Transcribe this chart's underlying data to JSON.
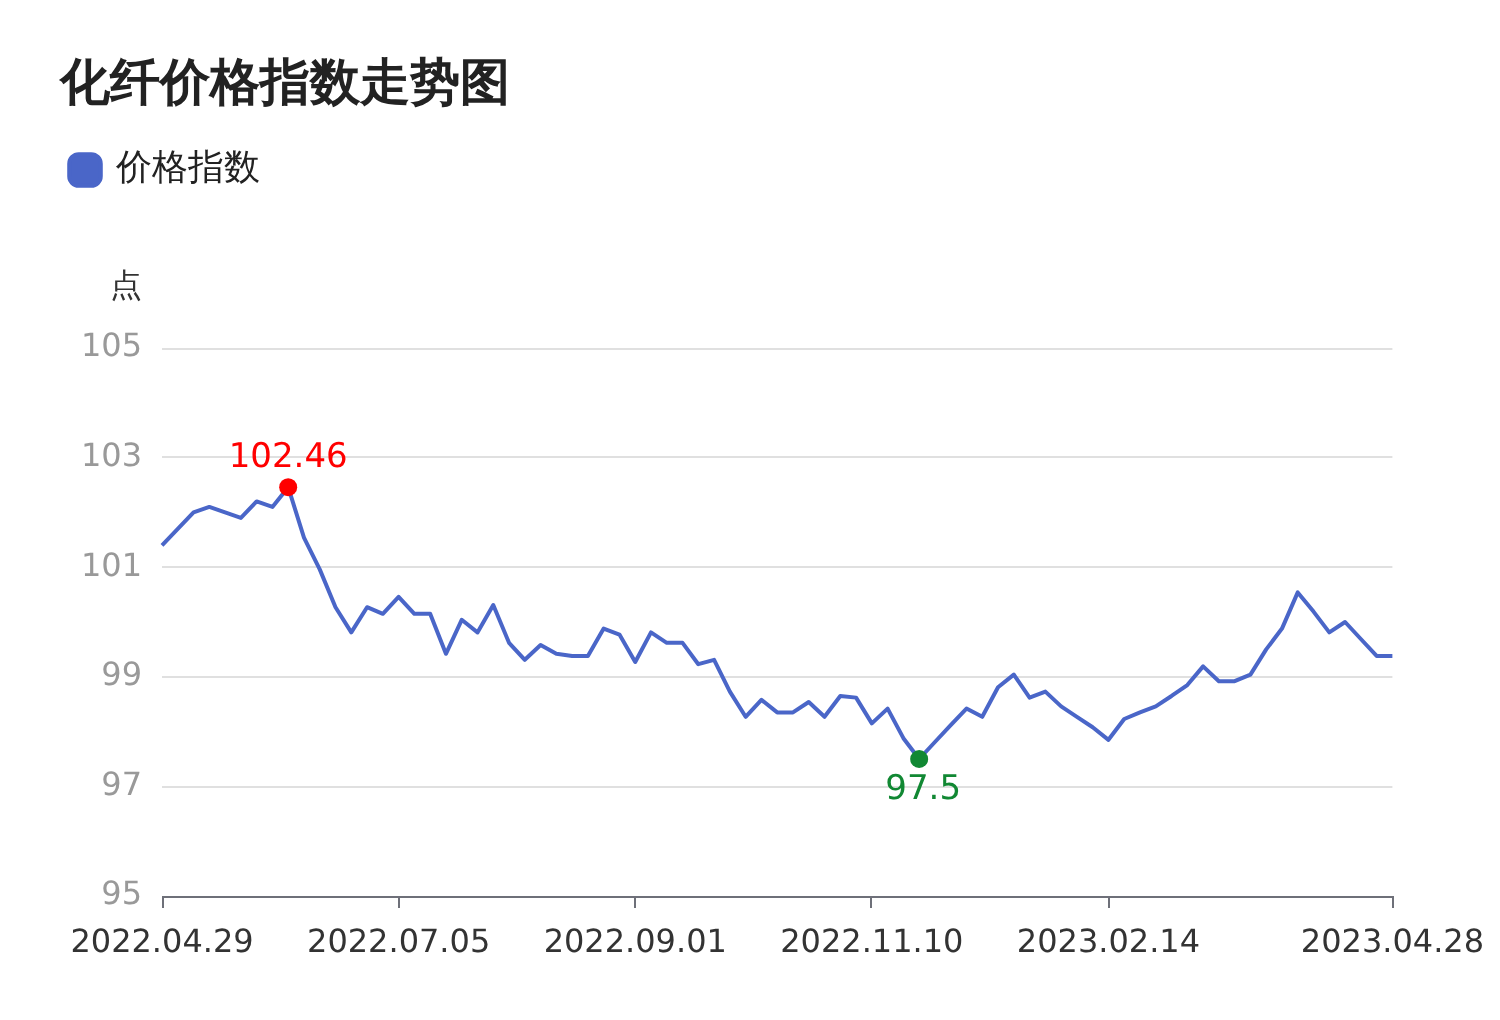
{
  "chart_data": {
    "type": "line",
    "title": "化纤价格指数走势图",
    "ylabel": "点",
    "categories": [
      "2022.04.29",
      null,
      null,
      null,
      null,
      null,
      null,
      null,
      null,
      null,
      null,
      null,
      null,
      null,
      null,
      "2022.07.05",
      null,
      null,
      null,
      null,
      null,
      null,
      null,
      null,
      null,
      null,
      null,
      null,
      null,
      null,
      "2022.09.01",
      null,
      null,
      null,
      null,
      null,
      null,
      null,
      null,
      null,
      null,
      null,
      null,
      null,
      null,
      "2022.11.10",
      null,
      null,
      null,
      null,
      null,
      null,
      null,
      null,
      null,
      null,
      null,
      null,
      null,
      null,
      "2023.02.14",
      null,
      null,
      null,
      null,
      null,
      null,
      null,
      null,
      null,
      null,
      null,
      null,
      null,
      null,
      null,
      null,
      null,
      "2023.04.28"
    ],
    "series": [
      {
        "name": "价格指数",
        "color": "#4a66c8",
        "values": [
          101.4,
          101.7,
          102.0,
          102.1,
          102.0,
          101.9,
          102.2,
          102.1,
          102.46,
          101.54,
          100.96,
          100.27,
          99.81,
          100.27,
          100.15,
          100.46,
          100.15,
          100.15,
          99.42,
          100.04,
          99.81,
          100.31,
          99.62,
          99.31,
          99.58,
          99.42,
          99.38,
          99.38,
          99.88,
          99.77,
          99.27,
          99.81,
          99.62,
          99.62,
          99.23,
          99.31,
          98.73,
          98.27,
          98.58,
          98.35,
          98.35,
          98.54,
          98.27,
          98.65,
          98.62,
          98.15,
          98.42,
          97.88,
          97.5,
          97.81,
          98.12,
          98.42,
          98.27,
          98.81,
          99.04,
          98.62,
          98.73,
          98.46,
          98.27,
          98.08,
          97.85,
          98.23,
          98.35,
          98.46,
          98.65,
          98.85,
          99.19,
          98.92,
          98.92,
          99.04,
          99.5,
          99.88,
          100.54,
          100.19,
          99.81,
          100.0,
          99.69,
          99.38,
          99.38
        ]
      }
    ],
    "ylim": [
      95,
      105
    ],
    "yticks": [
      95,
      97,
      99,
      101,
      103,
      105
    ],
    "grid": "y",
    "legend": "top left",
    "marker": "none",
    "line_style": "solid",
    "annotations": [
      {
        "text": "102.46",
        "y": 102.46
      },
      {
        "text": "97.5",
        "y": 97.5
      }
    ]
  }
}
